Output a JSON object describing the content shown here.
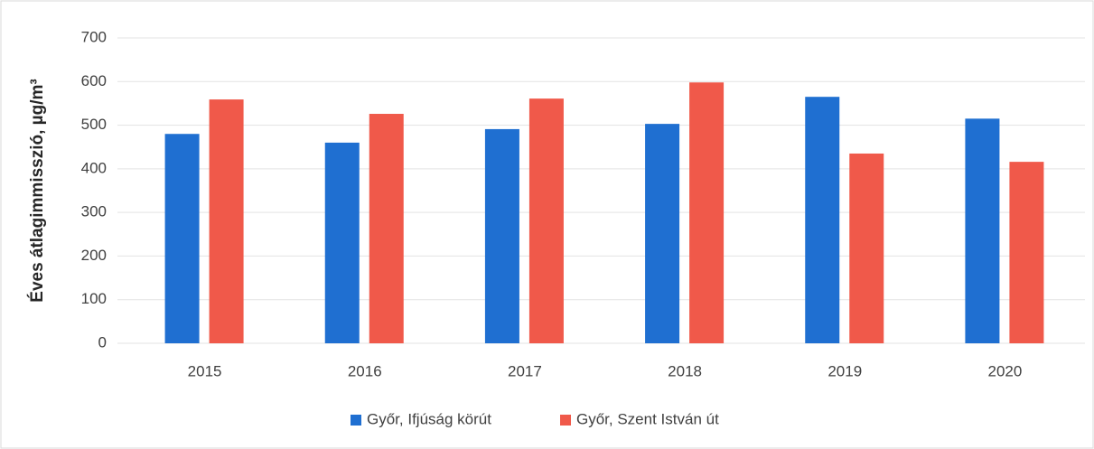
{
  "chart_data": {
    "type": "bar",
    "y_label": "Éves átlagimmisszió, µg/m³",
    "categories": [
      "2015",
      "2016",
      "2017",
      "2018",
      "2019",
      "2020"
    ],
    "series": [
      {
        "name": "Győr, Ifjúság körút",
        "color": "#1f6fd1",
        "values": [
          480,
          460,
          491,
          503,
          565,
          515
        ]
      },
      {
        "name": "Győr, Szent István út",
        "color": "#f0594a",
        "values": [
          559,
          526,
          561,
          598,
          435,
          416
        ]
      }
    ],
    "ylim": [
      0,
      700
    ],
    "yticks": [
      0,
      100,
      200,
      300,
      400,
      500,
      600,
      700
    ],
    "grid": true,
    "legend": "bottom"
  }
}
